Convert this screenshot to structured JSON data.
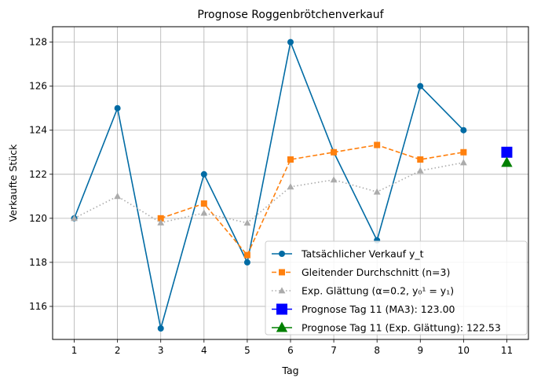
{
  "chart_data": {
    "type": "line",
    "title": "Prognose Roggenbrötchenverkauf",
    "xlabel": "Tag",
    "ylabel": "Verkaufte Stück",
    "xlim": [
      0.5,
      11.5
    ],
    "ylim": [
      114.5,
      128.7
    ],
    "xticks": [
      1,
      2,
      3,
      4,
      5,
      6,
      7,
      8,
      9,
      10,
      11
    ],
    "yticks": [
      116,
      118,
      120,
      122,
      124,
      126,
      128
    ],
    "grid": true,
    "legend_position": "lower-right",
    "series": [
      {
        "name": "Tatsächlicher Verkauf y_t",
        "style": "solid",
        "marker": "circle",
        "color": "#006ba4",
        "x": [
          1,
          2,
          3,
          4,
          5,
          6,
          7,
          8,
          9,
          10
        ],
        "values": [
          120,
          125,
          115,
          122,
          118,
          128,
          123,
          119,
          126,
          124
        ]
      },
      {
        "name": "Gleitender Durchschnitt (n=3)",
        "style": "dashed",
        "marker": "square",
        "color": "#ff800e",
        "x": [
          3,
          4,
          5,
          6,
          7,
          8,
          9,
          10
        ],
        "values": [
          120.0,
          120.67,
          118.33,
          122.67,
          123.0,
          123.33,
          122.67,
          123.0
        ]
      },
      {
        "name": "Exp. Glättung (α=0.2, y₀¹ = y₁)",
        "style": "dotted",
        "marker": "triangle",
        "color": "#ababab",
        "x": [
          1,
          2,
          3,
          4,
          5,
          6,
          7,
          8,
          9,
          10
        ],
        "values": [
          120.0,
          121.0,
          119.8,
          120.24,
          119.79,
          121.43,
          121.75,
          121.2,
          122.16,
          122.53
        ]
      },
      {
        "name": "Prognose Tag 11 (MA3): 123.00",
        "style": "none",
        "marker": "big-square",
        "color": "#0000ff",
        "x": [
          11
        ],
        "values": [
          123.0
        ]
      },
      {
        "name": "Prognose Tag 11 (Exp. Glättung): 122.53",
        "style": "none",
        "marker": "big-triangle",
        "color": "#008000",
        "x": [
          11
        ],
        "values": [
          122.53
        ]
      }
    ]
  }
}
